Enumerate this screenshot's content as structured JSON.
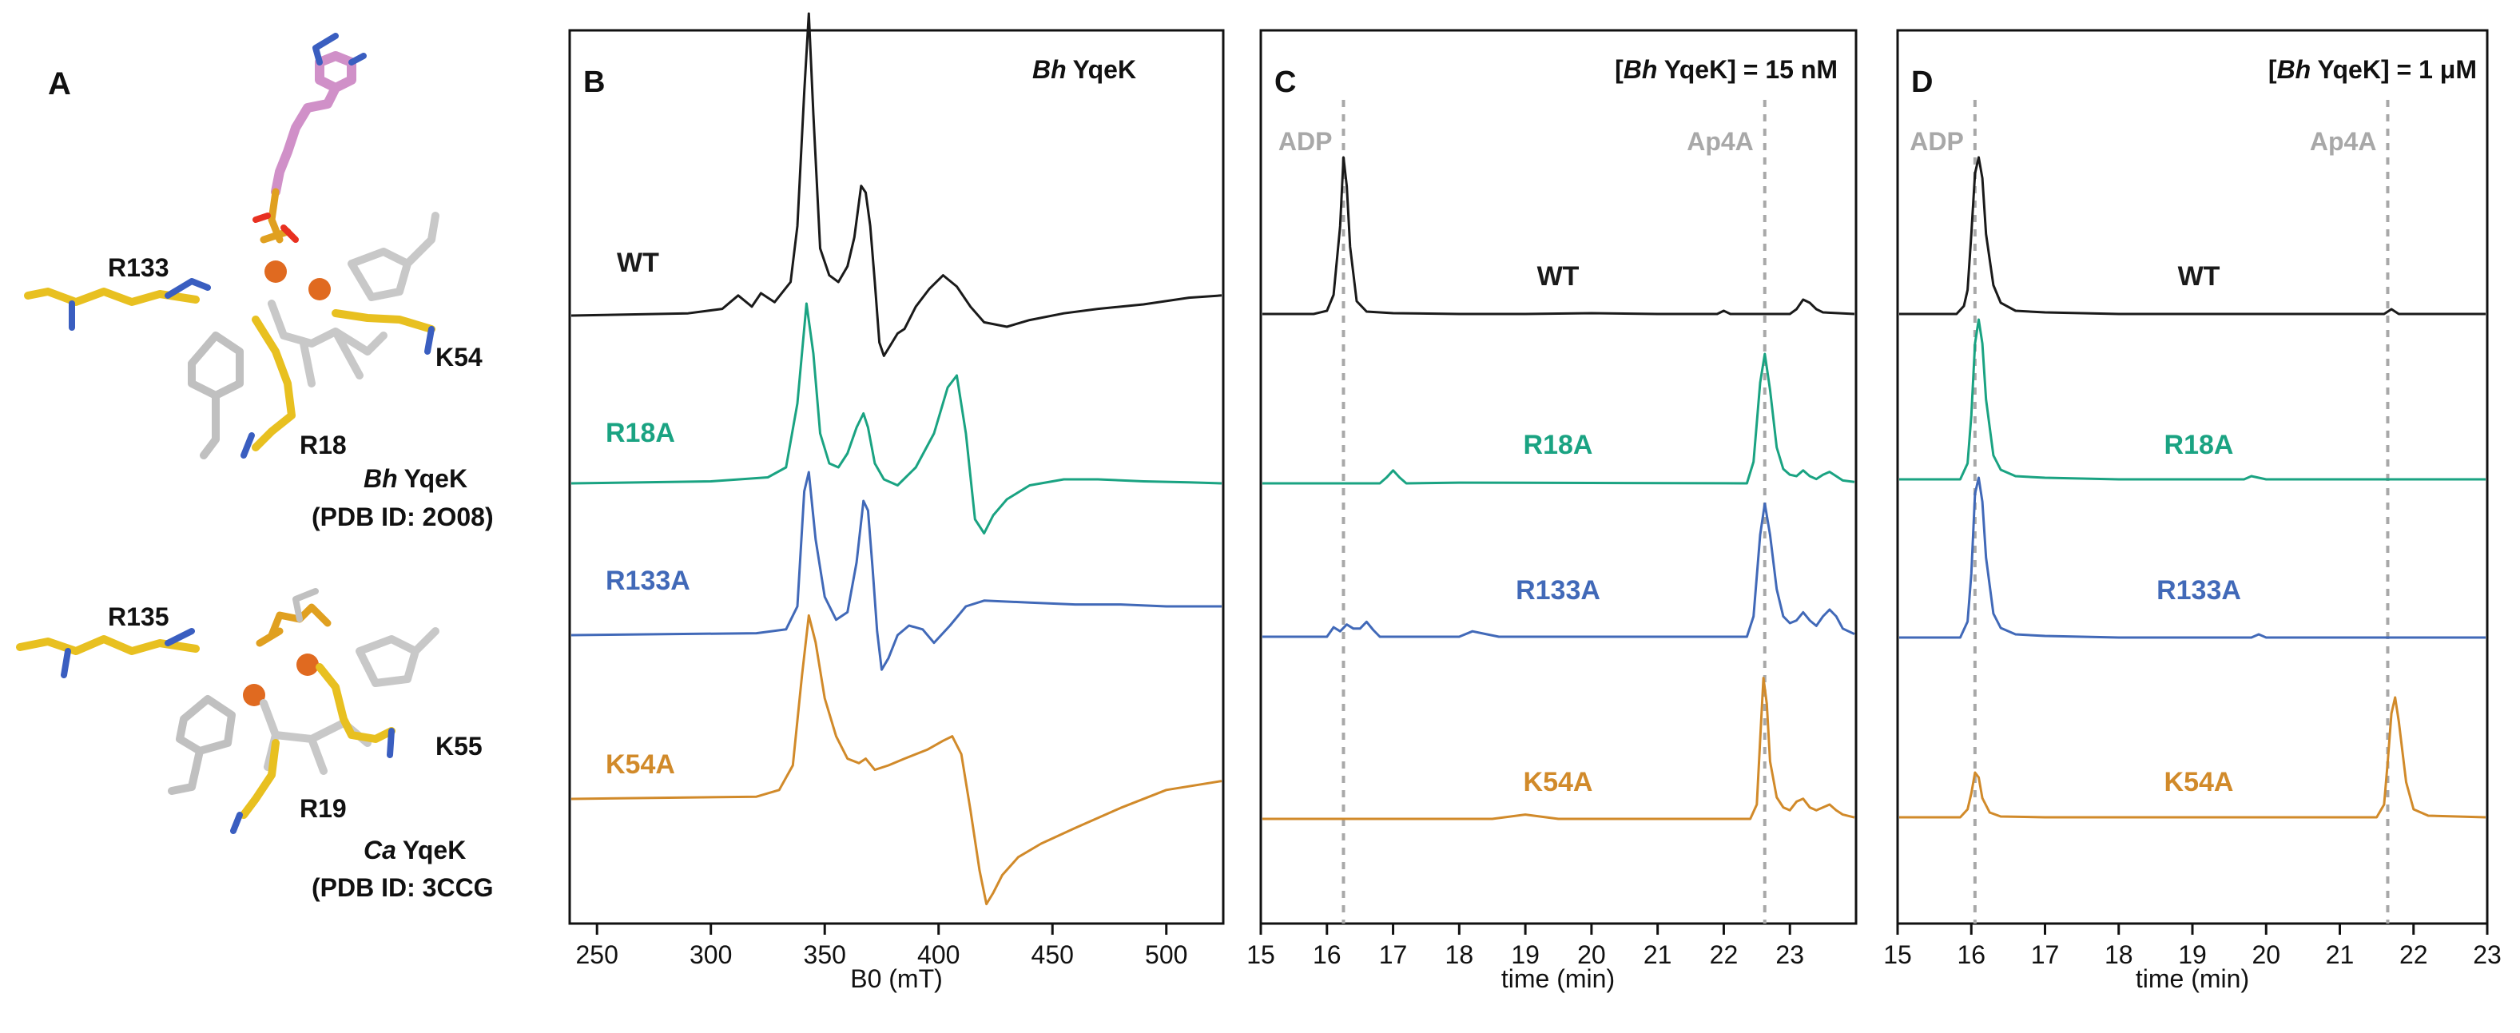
{
  "panel_a": {
    "panel_label": "A",
    "bh": {
      "residues": [
        "R133",
        "K54",
        "R18"
      ],
      "species": "Bh",
      "protein": "YqeK",
      "pdb": "(PDB ID: 2O08)"
    },
    "ca": {
      "residues": [
        "R135",
        "K55",
        "R19"
      ],
      "species": "Ca",
      "protein": "YqeK",
      "pdb": "(PDB ID: 3CCG"
    }
  },
  "colors": {
    "WT": "#1a1a1a",
    "R18A": "#1aa382",
    "R133A": "#4169b8",
    "K54A": "#d18a2a",
    "marker": "#a8a8a8"
  },
  "chart_data": [
    {
      "panel_label": "B",
      "type": "line",
      "title": "Bh YqeK",
      "title_italic": "Bh",
      "title_rest": "YqeK",
      "xlabel": "B0 (mT)",
      "ylabel": "",
      "xlim": [
        238,
        525
      ],
      "xticks": [
        250,
        300,
        350,
        400,
        450,
        500
      ],
      "yaxis_ticks": false,
      "series": [
        {
          "name": "WT",
          "label": "WT",
          "x": [
            238,
            290,
            305,
            312,
            318,
            322,
            328,
            335,
            338,
            341,
            343,
            345,
            348,
            352,
            356,
            360,
            363,
            366,
            368,
            370,
            372,
            374,
            376,
            379,
            382,
            385,
            390,
            396,
            402,
            408,
            414,
            420,
            430,
            440,
            455,
            470,
            490,
            510,
            525
          ],
          "y": [
            0,
            0.1,
            0.3,
            0.9,
            0.4,
            1.0,
            0.6,
            1.5,
            4.0,
            10.0,
            13.5,
            9.0,
            3.0,
            1.8,
            1.5,
            2.2,
            3.5,
            5.8,
            5.5,
            4.0,
            1.5,
            -1.2,
            -1.8,
            -1.3,
            -0.8,
            -0.6,
            0.4,
            1.2,
            1.8,
            1.3,
            0.4,
            -0.3,
            -0.5,
            -0.2,
            0.1,
            0.3,
            0.5,
            0.8,
            0.9
          ]
        },
        {
          "name": "R18A",
          "label": "R18A",
          "x": [
            238,
            300,
            325,
            333,
            338,
            342,
            345,
            348,
            352,
            356,
            360,
            364,
            367,
            369,
            372,
            376,
            382,
            390,
            398,
            404,
            408,
            412,
            416,
            420,
            424,
            430,
            440,
            455,
            470,
            490,
            510,
            525
          ],
          "y": [
            0,
            0.1,
            0.3,
            0.8,
            4.0,
            9.0,
            6.5,
            2.5,
            1.0,
            0.8,
            1.5,
            2.8,
            3.5,
            2.8,
            1.0,
            0.2,
            -0.1,
            0.8,
            2.5,
            4.8,
            5.4,
            2.5,
            -1.8,
            -2.5,
            -1.6,
            -0.8,
            -0.1,
            0.2,
            0.2,
            0.1,
            0.05,
            0.0
          ]
        },
        {
          "name": "R133A",
          "label": "R133A",
          "x": [
            238,
            320,
            333,
            338,
            341,
            343,
            346,
            350,
            355,
            360,
            364,
            367,
            369,
            371,
            373,
            375,
            378,
            382,
            387,
            393,
            398,
            405,
            412,
            420,
            440,
            460,
            480,
            500,
            525
          ],
          "y": [
            0,
            0.1,
            0.3,
            1.5,
            7.5,
            8.5,
            5.0,
            2.0,
            0.8,
            1.2,
            3.8,
            7.0,
            6.5,
            3.5,
            0.2,
            -1.8,
            -1.2,
            0.0,
            0.5,
            0.3,
            -0.4,
            0.5,
            1.5,
            1.8,
            1.7,
            1.6,
            1.6,
            1.5,
            1.5
          ]
        },
        {
          "name": "K54A",
          "label": "K54A",
          "x": [
            238,
            320,
            330,
            336,
            340,
            343,
            346,
            350,
            355,
            360,
            365,
            368,
            372,
            378,
            385,
            395,
            402,
            406,
            410,
            414,
            418,
            421,
            424,
            428,
            435,
            445,
            460,
            480,
            500,
            525
          ],
          "y": [
            0,
            0.1,
            0.4,
            1.5,
            5.5,
            8.2,
            7.0,
            4.5,
            2.8,
            1.8,
            1.6,
            1.8,
            1.3,
            1.5,
            1.8,
            2.2,
            2.6,
            2.8,
            2.0,
            -0.5,
            -3.2,
            -4.7,
            -4.2,
            -3.4,
            -2.6,
            -2.0,
            -1.3,
            -0.4,
            0.4,
            0.8
          ]
        }
      ]
    },
    {
      "panel_label": "C",
      "type": "line",
      "title": "[Bh YqeK] = 15 nM",
      "title_italic": "Bh",
      "title_rest_before": "[",
      "title_rest_after": " YqeK] = 15 nM",
      "xlabel": "time (min)",
      "ylabel": "",
      "xlim": [
        15,
        24
      ],
      "xticks": [
        15,
        16,
        17,
        18,
        19,
        20,
        21,
        22,
        23
      ],
      "markers": [
        {
          "label": "ADP",
          "x": 16.25
        },
        {
          "label": "Ap4A",
          "x": 22.62
        }
      ],
      "series": [
        {
          "name": "WT",
          "label": "WT",
          "x": [
            15,
            15.8,
            16.0,
            16.1,
            16.2,
            16.25,
            16.3,
            16.35,
            16.45,
            16.6,
            17,
            18,
            19,
            20,
            21,
            21.9,
            22.0,
            22.1,
            23.0,
            23.1,
            23.2,
            23.3,
            23.4,
            23.5,
            24
          ],
          "y": [
            0,
            0,
            0.2,
            1.2,
            5.5,
            9.8,
            8.0,
            4.2,
            0.8,
            0.15,
            0.05,
            0,
            0,
            0.05,
            0,
            0,
            0.2,
            0,
            0,
            0.3,
            0.9,
            0.7,
            0.3,
            0.1,
            0
          ]
        },
        {
          "name": "R18A",
          "label": "R18A",
          "x": [
            15,
            16.8,
            16.9,
            17.0,
            17.1,
            17.2,
            18,
            22.35,
            22.45,
            22.55,
            22.62,
            22.7,
            22.8,
            22.9,
            23.0,
            23.1,
            23.2,
            23.3,
            23.4,
            23.5,
            23.6,
            23.7,
            23.8,
            24
          ],
          "y": [
            0,
            0,
            0.4,
            0.9,
            0.4,
            0,
            0.05,
            0,
            1.5,
            7.0,
            9.0,
            6.5,
            2.5,
            1.0,
            0.6,
            0.5,
            0.9,
            0.5,
            0.3,
            0.6,
            0.8,
            0.5,
            0.2,
            0.1
          ]
        },
        {
          "name": "R133A",
          "label": "R133A",
          "x": [
            15,
            16.0,
            16.1,
            16.2,
            16.3,
            16.4,
            16.5,
            16.6,
            16.7,
            16.8,
            18.0,
            18.2,
            18.4,
            18.6,
            22.35,
            22.45,
            22.55,
            22.62,
            22.7,
            22.8,
            22.9,
            23.0,
            23.1,
            23.2,
            23.3,
            23.4,
            23.5,
            23.6,
            23.7,
            23.8,
            24
          ],
          "y": [
            0,
            0,
            0.7,
            0.4,
            0.9,
            0.6,
            0.6,
            1.1,
            0.5,
            0,
            0,
            0.4,
            0.2,
            0,
            0,
            1.5,
            7.5,
            9.8,
            7.5,
            3.5,
            1.5,
            1.0,
            1.2,
            1.8,
            1.2,
            0.8,
            1.5,
            2.0,
            1.5,
            0.6,
            0.2
          ]
        },
        {
          "name": "K54A",
          "label": "K54A",
          "x": [
            15,
            18.5,
            19.0,
            19.5,
            22.4,
            22.5,
            22.55,
            22.6,
            22.65,
            22.7,
            22.8,
            22.9,
            23.0,
            23.1,
            23.2,
            23.3,
            23.4,
            23.5,
            23.6,
            23.7,
            23.8,
            24
          ],
          "y": [
            0,
            0,
            0.3,
            0,
            0,
            1.0,
            5.5,
            9.8,
            8.0,
            4.0,
            1.5,
            0.8,
            0.6,
            1.2,
            1.4,
            0.8,
            0.6,
            0.8,
            1.0,
            0.6,
            0.3,
            0.1
          ]
        }
      ]
    },
    {
      "panel_label": "D",
      "type": "line",
      "title": "[Bh YqeK] = 1 μM",
      "title_italic": "Bh",
      "title_rest_before": "[",
      "title_rest_after": " YqeK] = 1 μM",
      "xlabel": "time (min)",
      "ylabel": "",
      "xlim": [
        15,
        23
      ],
      "xticks": [
        15,
        16,
        17,
        18,
        19,
        20,
        21,
        22,
        23
      ],
      "markers": [
        {
          "label": "ADP",
          "x": 16.05
        },
        {
          "label": "Ap4A",
          "x": 21.65
        }
      ],
      "series": [
        {
          "name": "WT",
          "label": "WT",
          "x": [
            15,
            15.8,
            15.9,
            15.95,
            16.0,
            16.05,
            16.1,
            16.15,
            16.2,
            16.3,
            16.4,
            16.6,
            17,
            18,
            19,
            20,
            21,
            21.6,
            21.7,
            21.8,
            22,
            23
          ],
          "y": [
            0,
            0,
            0.5,
            1.5,
            5.0,
            8.8,
            9.8,
            8.5,
            5.0,
            1.8,
            0.7,
            0.2,
            0.1,
            0,
            0,
            0,
            0,
            0,
            0.3,
            0,
            0,
            0
          ]
        },
        {
          "name": "R18A",
          "label": "R18A",
          "x": [
            15,
            15.85,
            15.95,
            16.0,
            16.05,
            16.1,
            16.15,
            16.2,
            16.3,
            16.4,
            16.6,
            17,
            18,
            19,
            19.7,
            19.8,
            20,
            21,
            22,
            23
          ],
          "y": [
            0,
            0,
            1.0,
            4.0,
            8.5,
            10.0,
            8.5,
            5.0,
            1.5,
            0.6,
            0.2,
            0.1,
            0,
            0,
            0,
            0.2,
            0,
            0,
            0,
            0
          ]
        },
        {
          "name": "R133A",
          "label": "R133A",
          "x": [
            15,
            15.85,
            15.95,
            16.0,
            16.05,
            16.1,
            16.15,
            16.2,
            16.3,
            16.4,
            16.6,
            17,
            18,
            19,
            19.8,
            19.9,
            20,
            21,
            22,
            23
          ],
          "y": [
            0,
            0,
            1.0,
            4.0,
            9.0,
            10.0,
            8.5,
            5.0,
            1.5,
            0.6,
            0.2,
            0.1,
            0,
            0,
            0,
            0.2,
            0,
            0,
            0,
            0
          ]
        },
        {
          "name": "K54A",
          "label": "K54A",
          "x": [
            15,
            15.85,
            15.95,
            16.0,
            16.05,
            16.1,
            16.15,
            16.25,
            16.4,
            17,
            18,
            19,
            20,
            21,
            21.5,
            21.6,
            21.65,
            21.7,
            21.75,
            21.8,
            21.9,
            22.0,
            22.2,
            23
          ],
          "y": [
            0,
            0,
            0.5,
            1.5,
            2.8,
            2.5,
            1.2,
            0.3,
            0.05,
            0,
            0,
            0,
            0,
            0,
            0,
            0.8,
            3.5,
            6.5,
            7.5,
            6.0,
            2.2,
            0.5,
            0.1,
            0
          ]
        }
      ]
    }
  ]
}
